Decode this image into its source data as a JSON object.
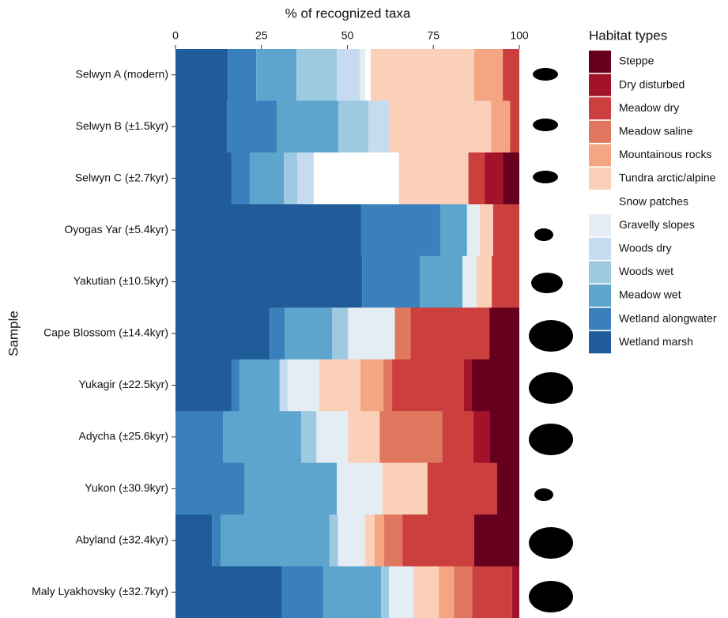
{
  "chart_data": {
    "type": "stacked-barh",
    "x_label": "% of recognized taxa",
    "y_label": "Sample",
    "legend_title": "Habitat types",
    "xlim": [
      0,
      100
    ],
    "xticks": [
      0,
      25,
      50,
      75,
      100
    ],
    "categories": [
      "Selwyn A (modern)",
      "Selwyn B (±1.5kyr)",
      "Selwyn C (±2.7kyr)",
      "Oyogas Yar (±5.4kyr)",
      "Yakutian (±10.5kyr)",
      "Cape Blossom (±14.4kyr)",
      "Yukagir (±22.5kyr)",
      "Adycha (±25.6kyr)",
      "Yukon (±30.9kyr)",
      "Abyland (±32.4kyr)",
      "Maly Lyakhovsky (±32.7kyr)"
    ],
    "series": [
      {
        "name": "Wetland marsh",
        "color": "#1f5c99",
        "values": [
          15.2,
          15,
          16.3,
          54,
          54.3,
          27.4,
          16.3,
          0,
          0,
          10.6,
          31
        ]
      },
      {
        "name": "Wetland alongwater",
        "color": "#3a80bc",
        "values": [
          8.3,
          14.5,
          5.3,
          23,
          16.8,
          4.4,
          2.3,
          13.8,
          20,
          2.5,
          12
        ]
      },
      {
        "name": "Meadow wet",
        "color": "#5ea5ce",
        "values": [
          11.7,
          17.9,
          9.9,
          7.8,
          12.4,
          13.8,
          11.7,
          22.8,
          26.9,
          31.7,
          16.8
        ]
      },
      {
        "name": "Woods wet",
        "color": "#9ecae1",
        "values": [
          11.7,
          8.7,
          3.9,
          0,
          0,
          4.6,
          0,
          4.4,
          0,
          2.5,
          2.3
        ]
      },
      {
        "name": "Woods dry",
        "color": "#c6dbef",
        "values": [
          6.7,
          6,
          4.8,
          0,
          0,
          0,
          2.3,
          0,
          0,
          0,
          0
        ]
      },
      {
        "name": "Gravelly slopes",
        "color": "#e4edf3",
        "values": [
          1.6,
          0,
          0,
          3.7,
          4.1,
          13.6,
          9.2,
          9.2,
          13.3,
          7.8,
          7.1
        ]
      },
      {
        "name": "Snow patches",
        "color": "#ffffff",
        "values": [
          1.6,
          0,
          24.8,
          0,
          0,
          0,
          0,
          0,
          0,
          0,
          0
        ]
      },
      {
        "name": "Tundra arctic/alpine",
        "color": "#fbd0b9",
        "values": [
          30.1,
          29.7,
          20.2,
          3.9,
          4.4,
          0,
          12,
          9.2,
          13.1,
          2.8,
          7.4
        ]
      },
      {
        "name": "Mountainous rocks",
        "color": "#f4a582",
        "values": [
          8.3,
          5.5,
          0,
          0,
          0,
          0,
          6.7,
          0,
          0,
          2.8,
          4.4
        ]
      },
      {
        "name": "Meadow saline",
        "color": "#e0775f",
        "values": [
          0,
          0,
          0,
          0,
          0,
          4.6,
          2.5,
          18.2,
          0,
          5.3,
          5.3
        ]
      },
      {
        "name": "Meadow dry",
        "color": "#cb3f3e",
        "values": [
          4.8,
          2.7,
          4.8,
          7.6,
          8,
          22.9,
          20.9,
          9,
          20.2,
          20.9,
          11.6
        ]
      },
      {
        "name": "Dry disturbed",
        "color": "#a2132a",
        "values": [
          0,
          0,
          5.3,
          0,
          0,
          0,
          2.3,
          4.8,
          0,
          0,
          2.1
        ]
      },
      {
        "name": "Steppe",
        "color": "#67001f",
        "values": [
          0,
          0,
          4.7,
          0,
          0,
          8.7,
          13.8,
          8.6,
          6.5,
          13.1,
          0
        ]
      }
    ]
  }
}
